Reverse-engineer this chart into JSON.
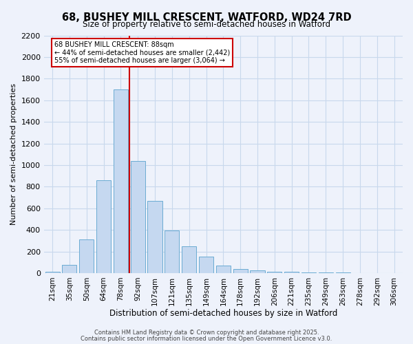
{
  "title": "68, BUSHEY MILL CRESCENT, WATFORD, WD24 7RD",
  "subtitle": "Size of property relative to semi-detached houses in Watford",
  "xlabel": "Distribution of semi-detached houses by size in Watford",
  "ylabel": "Number of semi-detached properties",
  "bar_labels": [
    "21sqm",
    "35sqm",
    "50sqm",
    "64sqm",
    "78sqm",
    "92sqm",
    "107sqm",
    "121sqm",
    "135sqm",
    "149sqm",
    "164sqm",
    "178sqm",
    "192sqm",
    "206sqm",
    "221sqm",
    "235sqm",
    "249sqm",
    "263sqm",
    "278sqm",
    "292sqm",
    "306sqm"
  ],
  "bar_values": [
    15,
    75,
    310,
    860,
    1700,
    1040,
    670,
    395,
    245,
    150,
    70,
    35,
    25,
    15,
    15,
    5,
    5,
    3,
    2,
    2,
    2
  ],
  "bar_color": "#c5d8f0",
  "bar_edge_color": "#6aabd2",
  "property_line_label": "68 BUSHEY MILL CRESCENT: 88sqm",
  "annotation_smaller": "← 44% of semi-detached houses are smaller (2,442)",
  "annotation_larger": "55% of semi-detached houses are larger (3,064) →",
  "ylim": [
    0,
    2200
  ],
  "yticks": [
    0,
    200,
    400,
    600,
    800,
    1000,
    1200,
    1400,
    1600,
    1800,
    2000,
    2200
  ],
  "grid_color": "#c8d8ec",
  "background_color": "#eef2fb",
  "annotation_box_color": "#ffffff",
  "annotation_box_edge": "#cc0000",
  "line_color": "#cc0000",
  "footer1": "Contains HM Land Registry data © Crown copyright and database right 2025.",
  "footer2": "Contains public sector information licensed under the Open Government Licence v3.0."
}
